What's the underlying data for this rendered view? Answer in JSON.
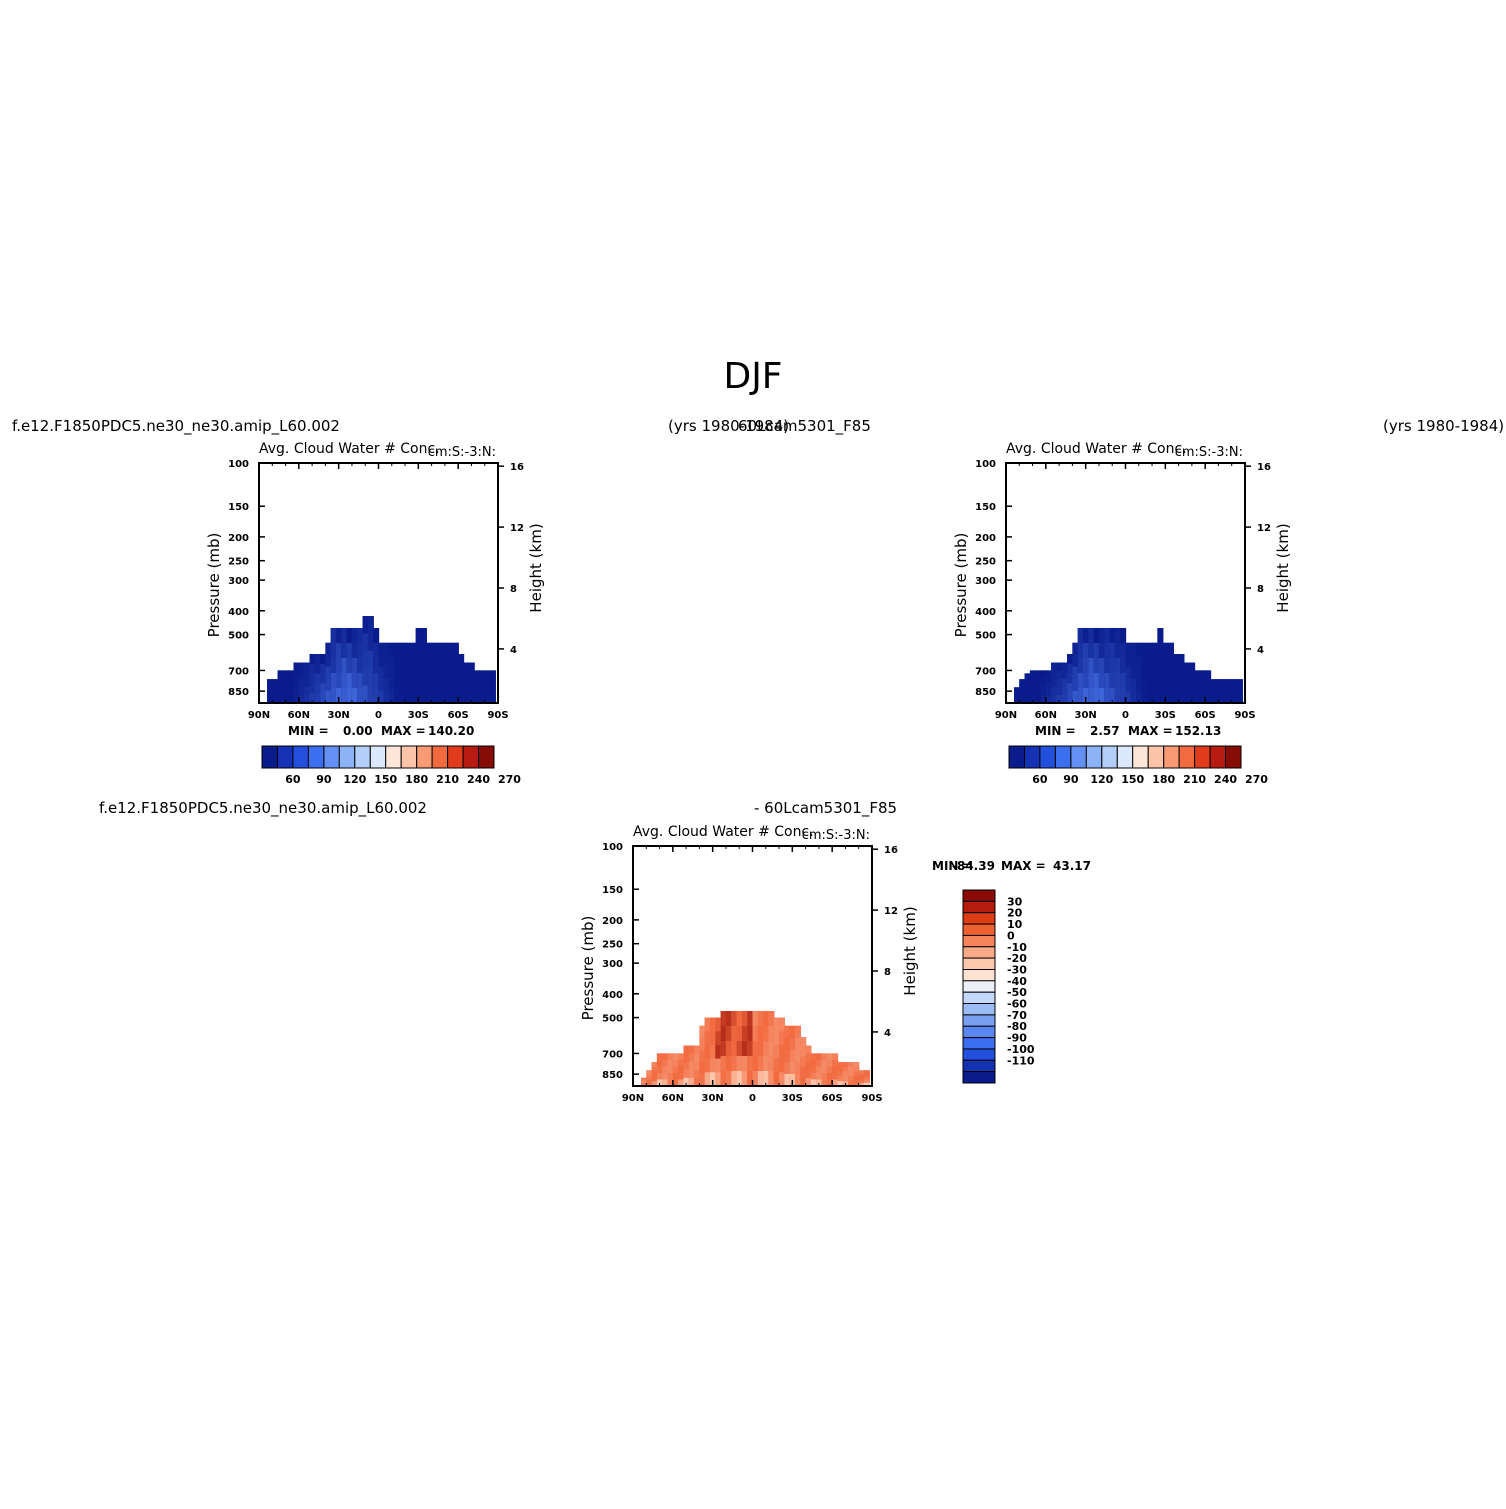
{
  "figure": {
    "title": "DJF"
  },
  "colors": {
    "blue_scale": [
      "#0a1c8c",
      "#1632b4",
      "#2250dc",
      "#3c6ef0",
      "#6490f4",
      "#8cb2f8",
      "#b4cefa",
      "#dce8fc",
      "#fde6d8",
      "#fcc4a8",
      "#f89a74",
      "#f26a40",
      "#e03c1c",
      "#b81c10",
      "#860c06"
    ],
    "diff_scale": [
      "#0a1c8c",
      "#1632b4",
      "#2250dc",
      "#3c6ef0",
      "#5a86f2",
      "#7aa0f4",
      "#9cbcf6",
      "#c4d8fa",
      "#eef0f8",
      "#fde2d2",
      "#fcc8ae",
      "#faaa86",
      "#f5845a",
      "#ee6030",
      "#dc3c14",
      "#b41c0c",
      "#8a0a06"
    ],
    "field_dark": "#0a1c8c",
    "field_mid": "#1e40c8",
    "field_light": "#4a78ec",
    "diff_base": "#f26a40",
    "diff_dark": "#a82010",
    "diff_light": "#fcc8ae"
  },
  "panels": [
    {
      "case_label": "f.e12.F1850PDC5.ne30_ne30.amip_L60.002",
      "years_label": "(yrs 1980-1984)",
      "variable_title": "Avg. Cloud Water # Conc.",
      "units_label": "cm:S:-3:N:",
      "ylabel_left": "Pressure (mb)",
      "ylabel_right": "Height (km)",
      "min_label": "MIN =",
      "min_value": "0.00",
      "max_label": "MAX =",
      "max_value": "140.20"
    },
    {
      "case_label": "60Lcam5301_F85",
      "years_label": "(yrs 1980-1984)",
      "variable_title": "Avg. Cloud Water # Conc.",
      "units_label": "cm:S:-3:N:",
      "ylabel_left": "Pressure (mb)",
      "ylabel_right": "Height (km)",
      "min_label": "MIN =",
      "min_value": "2.57",
      "max_label": "MAX =",
      "max_value": "152.13"
    },
    {
      "case_label": "f.e12.F1850PDC5.ne30_ne30.amip_L60.002",
      "case_label_b": "- 60Lcam5301_F85",
      "variable_title": "Avg. Cloud Water # Conc.",
      "units_label": "cm:S:-3:N:",
      "ylabel_left": "Pressure (mb)",
      "ylabel_right": "Height (km)",
      "min_label": "MIN =",
      "min_value": "-84.39",
      "max_label": "MAX =",
      "max_value": "43.17"
    }
  ],
  "chart_data": [
    {
      "type": "heatmap",
      "title": "Avg. Cloud Water # Conc.",
      "units": "cm:S:-3:N:",
      "xlabel": "",
      "ylabel": "Pressure (mb)",
      "y2label": "Height (km)",
      "x_ticks": [
        "90N",
        "60N",
        "30N",
        "0",
        "30S",
        "60S",
        "90S"
      ],
      "x_values": [
        90,
        60,
        30,
        0,
        -30,
        -60,
        -90
      ],
      "y_ticks": [
        100,
        150,
        200,
        250,
        300,
        400,
        500,
        700,
        850
      ],
      "y_range": [
        100,
        950
      ],
      "y2_ticks": [
        16,
        12,
        8,
        4
      ],
      "colorbar_levels": [
        60,
        90,
        120,
        150,
        180,
        210,
        240,
        270
      ],
      "min": 0.0,
      "max": 140.2,
      "cloud_top_profile": {
        "lat": [
          82,
          78,
          74,
          70,
          66,
          62,
          58,
          54,
          50,
          46,
          42,
          38,
          34,
          30,
          26,
          22,
          18,
          14,
          10,
          6,
          2,
          -2,
          -6,
          -10,
          -14,
          -18,
          -22,
          -26,
          -30,
          -34,
          -38,
          -42,
          -46,
          -50,
          -54,
          -58,
          -62,
          -66,
          -70,
          -74,
          -78,
          -82,
          -86
        ],
        "top_mb": [
          760,
          760,
          700,
          700,
          700,
          650,
          650,
          650,
          600,
          600,
          600,
          540,
          470,
          470,
          470,
          470,
          470,
          470,
          420,
          420,
          470,
          540,
          540,
          540,
          540,
          540,
          540,
          540,
          470,
          470,
          540,
          540,
          540,
          540,
          540,
          540,
          600,
          650,
          650,
          700,
          700,
          700,
          700
        ]
      }
    },
    {
      "type": "heatmap",
      "title": "Avg. Cloud Water # Conc.",
      "units": "cm:S:-3:N:",
      "ylabel": "Pressure (mb)",
      "y2label": "Height (km)",
      "x_ticks": [
        "90N",
        "60N",
        "30N",
        "0",
        "30S",
        "60S",
        "90S"
      ],
      "y_ticks": [
        100,
        150,
        200,
        250,
        300,
        400,
        500,
        700,
        850
      ],
      "y2_ticks": [
        16,
        12,
        8,
        4
      ],
      "colorbar_levels": [
        60,
        90,
        120,
        150,
        180,
        210,
        240,
        270
      ],
      "min": 2.57,
      "max": 152.13,
      "cloud_top_profile": {
        "lat": [
          82,
          78,
          74,
          70,
          66,
          62,
          58,
          54,
          50,
          46,
          42,
          38,
          34,
          30,
          26,
          22,
          18,
          14,
          10,
          6,
          2,
          -2,
          -6,
          -10,
          -14,
          -18,
          -22,
          -26,
          -30,
          -34,
          -38,
          -42,
          -46,
          -50,
          -54,
          -58,
          -62,
          -66,
          -70,
          -74,
          -78,
          -82,
          -86
        ],
        "top_mb": [
          820,
          760,
          720,
          700,
          700,
          700,
          700,
          650,
          650,
          650,
          600,
          540,
          470,
          470,
          470,
          470,
          470,
          470,
          470,
          470,
          470,
          540,
          540,
          540,
          540,
          540,
          540,
          470,
          540,
          540,
          600,
          600,
          650,
          650,
          700,
          700,
          700,
          760,
          760,
          760,
          760,
          760,
          760
        ]
      }
    },
    {
      "type": "heatmap",
      "title": "Avg. Cloud Water # Conc.",
      "units": "cm:S:-3:N:",
      "ylabel": "Pressure (mb)",
      "y2label": "Height (km)",
      "x_ticks": [
        "90N",
        "60N",
        "30N",
        "0",
        "30S",
        "60S",
        "90S"
      ],
      "y_ticks": [
        100,
        150,
        200,
        250,
        300,
        400,
        500,
        700,
        850
      ],
      "y2_ticks": [
        16,
        12,
        8,
        4
      ],
      "colorbar_levels": [
        30,
        20,
        10,
        0,
        -10,
        -20,
        -30,
        -40,
        -50,
        -60,
        -70,
        -80,
        -90,
        -100,
        -110
      ],
      "min": -84.39,
      "max": 43.17,
      "cloud_top_profile": {
        "lat": [
          82,
          78,
          74,
          70,
          66,
          62,
          58,
          54,
          50,
          46,
          42,
          38,
          34,
          30,
          26,
          22,
          18,
          14,
          10,
          6,
          2,
          -2,
          -6,
          -10,
          -14,
          -18,
          -22,
          -26,
          -30,
          -34,
          -38,
          -42,
          -46,
          -50,
          -54,
          -58,
          -62,
          -66,
          -70,
          -74,
          -78,
          -82,
          -86
        ],
        "top_mb": [
          880,
          820,
          760,
          700,
          700,
          700,
          700,
          700,
          650,
          650,
          650,
          540,
          500,
          500,
          500,
          470,
          470,
          470,
          470,
          470,
          470,
          470,
          470,
          470,
          470,
          500,
          500,
          540,
          540,
          540,
          600,
          650,
          700,
          700,
          700,
          700,
          700,
          760,
          760,
          760,
          760,
          820,
          820
        ]
      }
    }
  ]
}
